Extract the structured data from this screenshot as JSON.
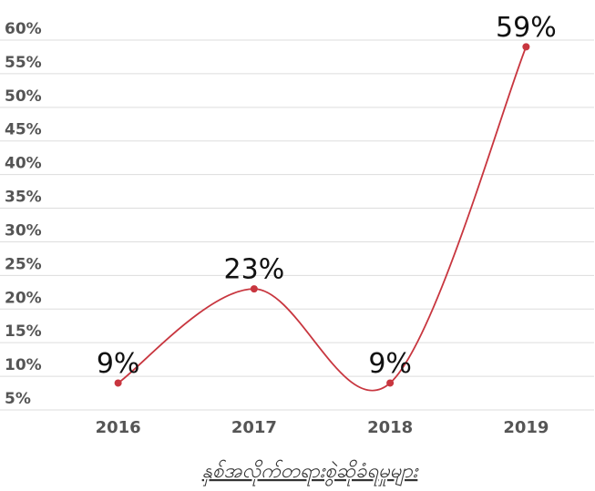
{
  "chart_data": {
    "type": "line",
    "x_label": "နှစ်အလိုက်တရားစွဲဆိုခံရမှုများ",
    "categories": [
      "2016",
      "2017",
      "2018",
      "2019"
    ],
    "values": [
      9,
      23,
      9,
      59
    ],
    "value_labels": [
      "9%",
      "23%",
      "9%",
      "59%"
    ],
    "color": "#c8363f",
    "ylim": [
      5,
      60
    ],
    "yticks": [
      {
        "value": 5,
        "label": "5%"
      },
      {
        "value": 10,
        "label": "10%"
      },
      {
        "value": 15,
        "label": "15%"
      },
      {
        "value": 20,
        "label": "20%"
      },
      {
        "value": 25,
        "label": "25%"
      },
      {
        "value": 30,
        "label": "30%"
      },
      {
        "value": 35,
        "label": "35%"
      },
      {
        "value": 40,
        "label": "40%"
      },
      {
        "value": 45,
        "label": "45%"
      },
      {
        "value": 50,
        "label": "50%"
      },
      {
        "value": 55,
        "label": "55%"
      },
      {
        "value": 60,
        "label": "60%"
      }
    ],
    "grid": true
  }
}
